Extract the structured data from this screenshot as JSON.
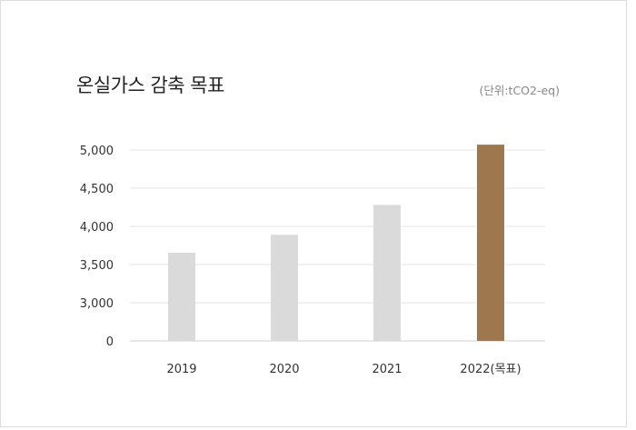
{
  "header": {
    "title": "온실가스 감축 목표",
    "unit": "(단위:tCO2-eq)"
  },
  "chart_data": {
    "type": "bar",
    "title": "온실가스 감축 목표",
    "categories": [
      "2019",
      "2020",
      "2021",
      "2022(목표)"
    ],
    "values": [
      3655,
      3890,
      4280,
      5070
    ],
    "y_tick_labels": [
      "5,000",
      "4,500",
      "4,000",
      "3,500",
      "3,000",
      "0"
    ],
    "y_tick_values": [
      5000,
      4500,
      4000,
      3500,
      3000,
      0
    ],
    "ylim": [
      0,
      5000
    ],
    "axis_break": true,
    "grid": true,
    "colors": {
      "default_bar": "#dadada",
      "highlight_bar": "#9e774f",
      "grid": "#e6e6e6",
      "axis": "#d0d0d0"
    },
    "highlight_index": 3
  }
}
